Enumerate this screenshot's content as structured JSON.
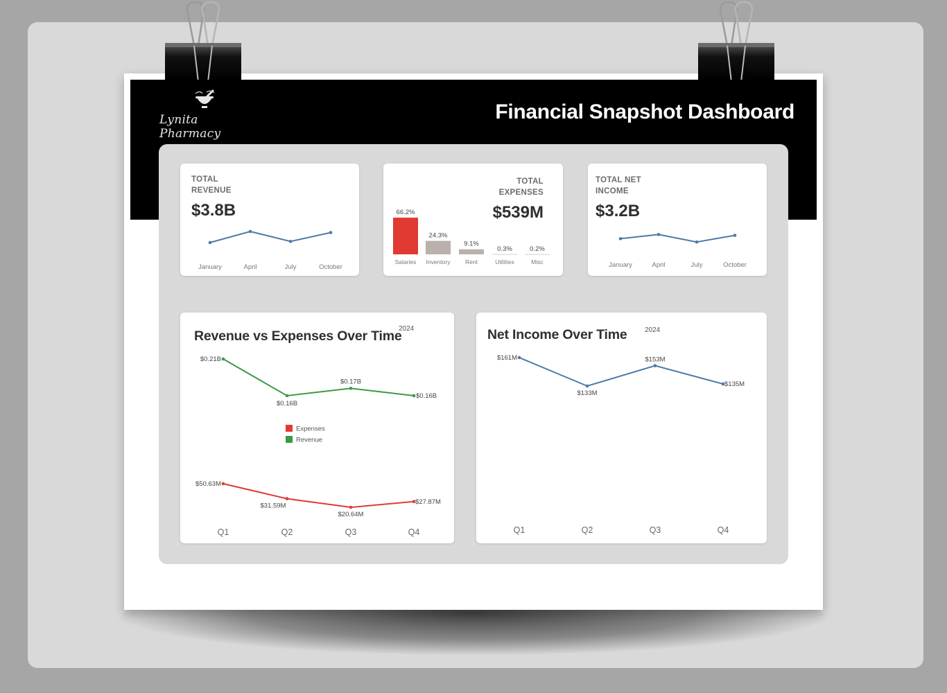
{
  "header": {
    "title": "Financial Snapshot Dashboard",
    "logo_text": "Lynita Pharmacy"
  },
  "kpis": {
    "revenue": {
      "label_line1": "TOTAL",
      "label_line2": "REVENUE",
      "value": "$3.8B"
    },
    "expenses": {
      "label_line1": "TOTAL",
      "label_line2": "EXPENSES",
      "value": "$539M"
    },
    "net_income": {
      "label_line1": "TOTAL NET",
      "label_line2": "INCOME",
      "value": "$3.2B"
    }
  },
  "charts": {
    "rev_exp": {
      "title": "Revenue vs Expenses Over Time",
      "year": "2024"
    },
    "net_income": {
      "title": "Net Income Over Time",
      "year": "2024"
    }
  },
  "colors": {
    "revenue_green": "#3a9a46",
    "expenses_red": "#e03a33",
    "net_blue": "#4e79a7",
    "bar_gray": "#bab0ac"
  },
  "chart_data": [
    {
      "type": "line",
      "id": "revenue_spark",
      "categories": [
        "January",
        "April",
        "July",
        "October"
      ],
      "values": [
        0.9,
        1.0,
        0.91,
        0.99
      ],
      "ylim": [
        0.8,
        1.1
      ],
      "color": "#4e79a7"
    },
    {
      "type": "bar",
      "id": "expenses_breakdown",
      "categories": [
        "Salaries",
        "Inventory",
        "Rent",
        "Utilities",
        "Misc"
      ],
      "values": [
        66.2,
        24.3,
        9.1,
        0.3,
        0.2
      ],
      "labels": [
        "66.2%",
        "24.3%",
        "9.1%",
        "0.3%",
        "0.2%"
      ],
      "ylim": [
        0,
        70
      ],
      "highlight_color": "#e03a33",
      "color": "#bab0ac"
    },
    {
      "type": "line",
      "id": "net_income_spark",
      "categories": [
        "January",
        "April",
        "July",
        "October"
      ],
      "values": [
        0.78,
        0.83,
        0.74,
        0.82
      ],
      "ylim": [
        0.6,
        1.0
      ],
      "color": "#4e79a7"
    },
    {
      "type": "line",
      "id": "rev_exp_over_time",
      "categories": [
        "Q1",
        "Q2",
        "Q3",
        "Q4"
      ],
      "series": [
        {
          "name": "Revenue",
          "values": [
            0.21,
            0.16,
            0.17,
            0.16
          ],
          "labels": [
            "$0.21B",
            "$0.16B",
            "$0.17B",
            "$0.16B"
          ],
          "color": "#3a9a46"
        },
        {
          "name": "Expenses",
          "values": [
            0.05063,
            0.03159,
            0.02064,
            0.02787
          ],
          "labels": [
            "$50.63M",
            "$31.59M",
            "$20.64M",
            "$27.87M"
          ],
          "color": "#e03a33"
        }
      ],
      "legend": [
        "Expenses",
        "Revenue"
      ]
    },
    {
      "type": "line",
      "id": "net_income_over_time",
      "categories": [
        "Q1",
        "Q2",
        "Q3",
        "Q4"
      ],
      "series": [
        {
          "values": [
            161,
            133,
            153,
            135
          ],
          "labels": [
            "$161M",
            "$133M",
            "$153M",
            "$135M"
          ],
          "color": "#4e79a7"
        }
      ],
      "ylim": [
        60,
        175
      ]
    }
  ]
}
